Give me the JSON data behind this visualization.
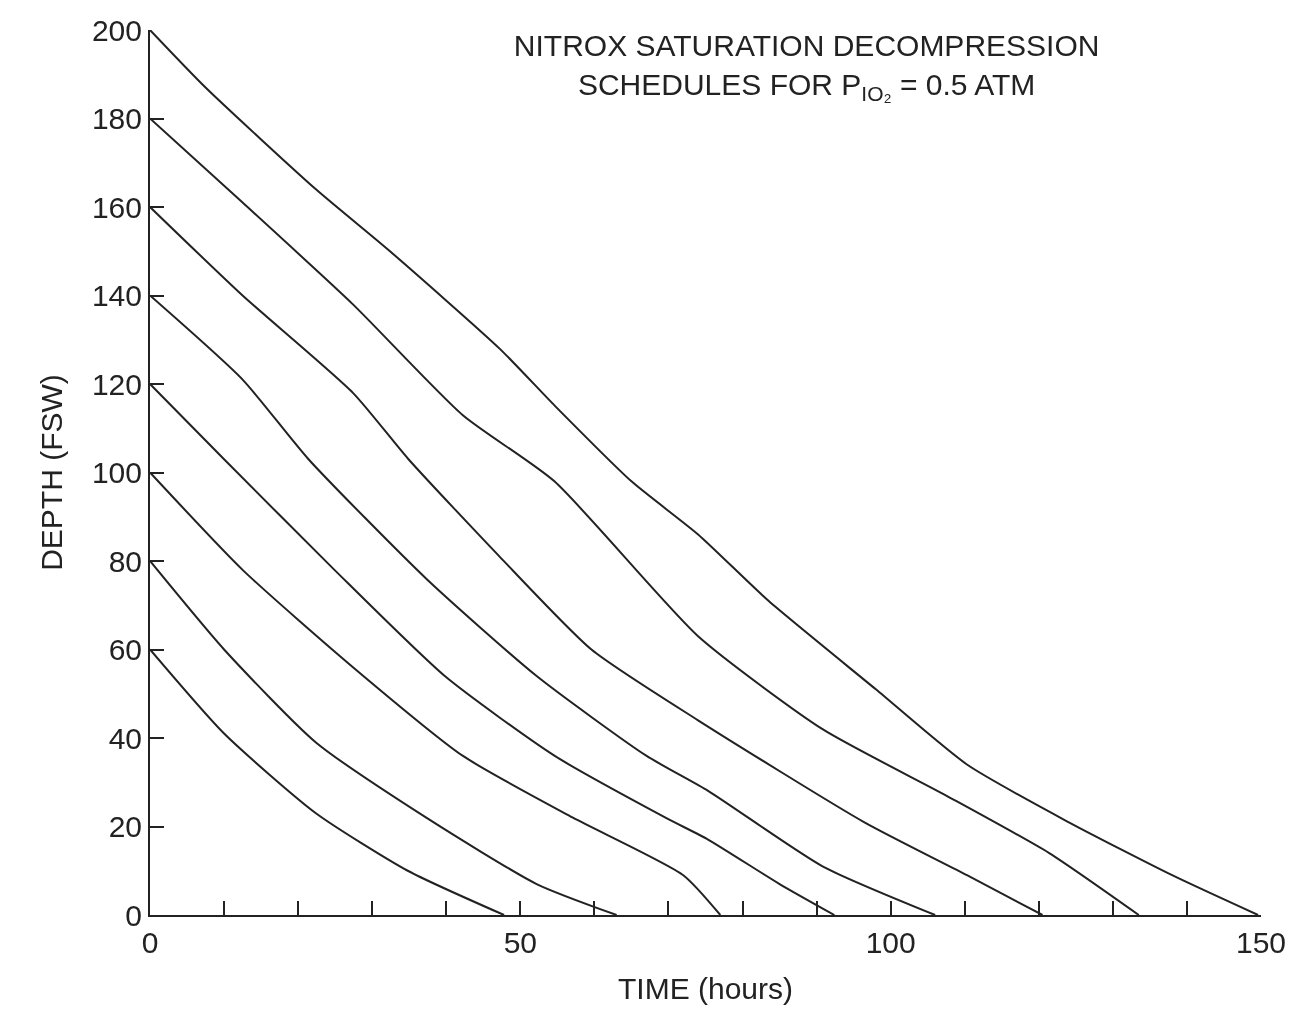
{
  "chart_data": {
    "type": "line",
    "title": "NITROX SATURATION DECOMPRESSION\nSCHEDULES FOR P$_{IO₂}$ = 0.5 ATM",
    "xlabel": "TIME (hours)",
    "ylabel": "DEPTH (FSW)",
    "xlim": [
      0,
      150
    ],
    "ylim": [
      0,
      200
    ],
    "xticks": [
      0,
      {
        "value": 10,
        "label": null
      },
      {
        "value": 20,
        "label": null
      },
      {
        "value": 30,
        "label": null
      },
      {
        "value": 40,
        "label": null
      },
      50,
      {
        "value": 60,
        "label": null
      },
      {
        "value": 70,
        "label": null
      },
      {
        "value": 80,
        "label": null
      },
      {
        "value": 90,
        "label": null
      },
      100,
      {
        "value": 110,
        "label": null
      },
      {
        "value": 120,
        "label": null
      },
      {
        "value": 130,
        "label": null
      },
      {
        "value": 140,
        "label": null
      },
      150
    ],
    "yticks": [
      0,
      20,
      40,
      60,
      80,
      100,
      120,
      140,
      160,
      180,
      200
    ],
    "grid": false,
    "marker": "none",
    "line_style": "solid",
    "series": [
      {
        "color": "#222222",
        "x": [
          0,
          7.5,
          22.4,
          32.4,
          47.2,
          54.7,
          65,
          74,
          83.5,
          98,
          110.3,
          124,
          138,
          149.6
        ],
        "values": [
          200,
          187,
          164,
          150,
          128,
          115,
          98,
          86,
          71,
          51,
          34,
          21,
          9,
          0
        ]
      },
      {
        "color": "#222222",
        "x": [
          0,
          12.5,
          27.4,
          42.2,
          54.6,
          74,
          90.8,
          107.5,
          121.4,
          133.5
        ],
        "values": [
          180,
          161,
          138,
          113,
          98,
          63,
          42,
          27,
          14,
          0
        ]
      },
      {
        "color": "#222222",
        "x": [
          0,
          12.5,
          27.4,
          34.9,
          47.2,
          59.6,
          74,
          96.4,
          110.3,
          120.5
        ],
        "values": [
          160,
          140,
          118,
          103,
          81,
          60,
          44,
          21,
          9,
          0
        ]
      },
      {
        "color": "#222222",
        "x": [
          0,
          12.5,
          21.4,
          37.3,
          52.2,
          67,
          75.4,
          90.8,
          106
        ],
        "values": [
          140,
          121,
          103,
          76,
          54,
          36,
          28,
          11,
          0
        ]
      },
      {
        "color": "#222222",
        "x": [
          0,
          10,
          24.9,
          39.8,
          54.6,
          69.6,
          75.4,
          85,
          92.4
        ],
        "values": [
          120,
          103,
          78,
          54,
          36,
          22,
          17,
          7,
          0
        ]
      },
      {
        "color": "#222222",
        "x": [
          0,
          12.5,
          27.4,
          42.2,
          57.1,
          72,
          77
        ],
        "values": [
          100,
          78,
          56,
          36,
          22,
          9,
          0
        ]
      },
      {
        "color": "#222222",
        "x": [
          0,
          10,
          22.4,
          37.3,
          52.2,
          63
        ],
        "values": [
          80,
          60,
          39,
          22,
          7,
          0
        ]
      },
      {
        "color": "#222222",
        "x": [
          0,
          10,
          22.4,
          34.8,
          47.8
        ],
        "values": [
          60,
          41,
          23,
          10,
          0
        ]
      }
    ]
  }
}
